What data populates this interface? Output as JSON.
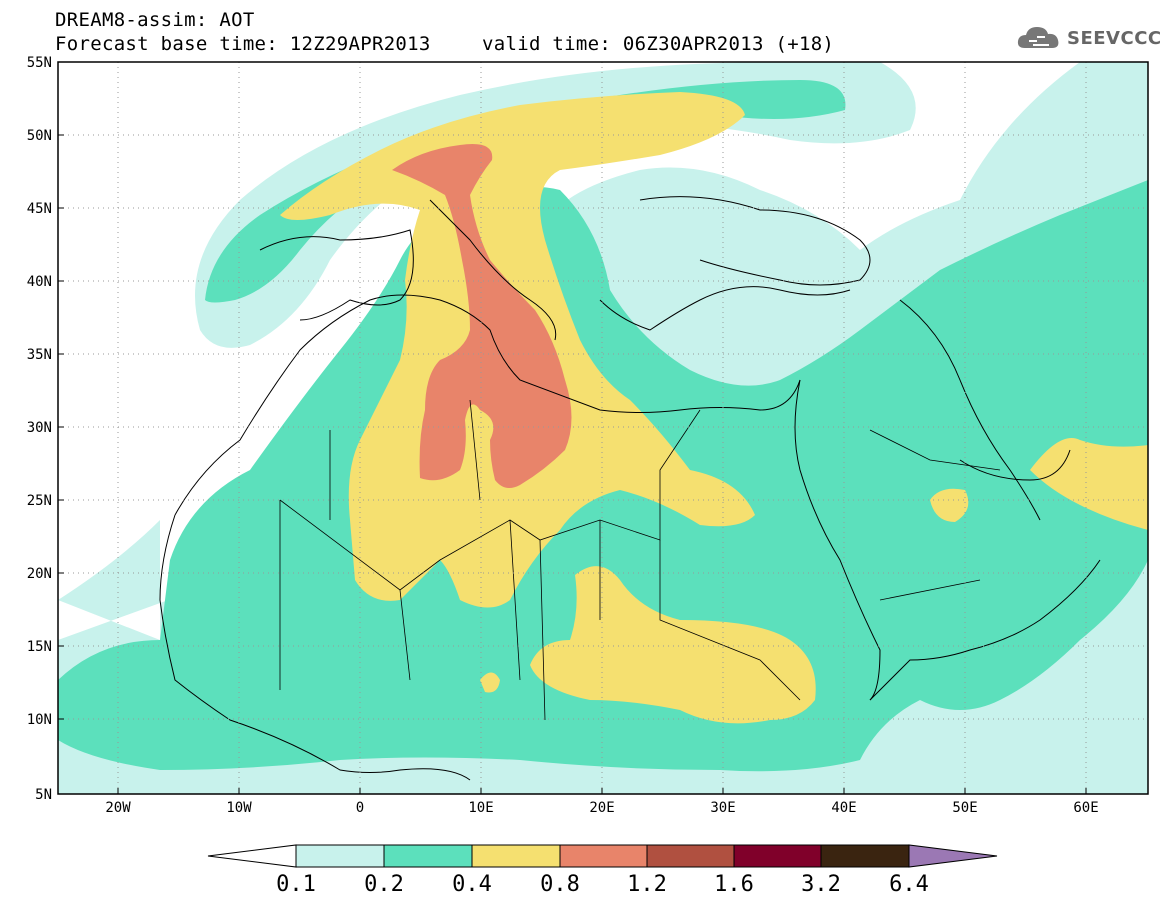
{
  "title_line1": "DREAM8-assim: AOT",
  "title_line2": "Forecast base time: 12Z29APR2013",
  "valid_time": "valid time: 06Z30APR2013 (+18)",
  "logo_text": "SEEVCCC",
  "map": {
    "lat_labels": [
      "55N",
      "50N",
      "45N",
      "40N",
      "35N",
      "30N",
      "25N",
      "20N",
      "15N",
      "10N",
      "5N"
    ],
    "lon_labels": [
      "20W",
      "10W",
      "0",
      "10E",
      "20E",
      "30E",
      "40E",
      "50E",
      "60E"
    ],
    "extent": {
      "lon_min": -25,
      "lon_max": 65,
      "lat_min": 5,
      "lat_max": 55
    }
  },
  "colorbar": {
    "labels": [
      "0.1",
      "0.2",
      "0.4",
      "0.8",
      "1.2",
      "1.6",
      "3.2",
      "6.4"
    ],
    "colors": [
      "#ffffff",
      "#c8f2ec",
      "#5ce0bc",
      "#f5e070",
      "#e8846a",
      "#b05040",
      "#80002a",
      "#3a2410",
      "#9b78b4"
    ]
  },
  "colors": {
    "ocean": "#ffffff",
    "level_01": "#c8f2ec",
    "level_02": "#5ce0bc",
    "level_04": "#f5e070",
    "level_08": "#e8846a"
  }
}
